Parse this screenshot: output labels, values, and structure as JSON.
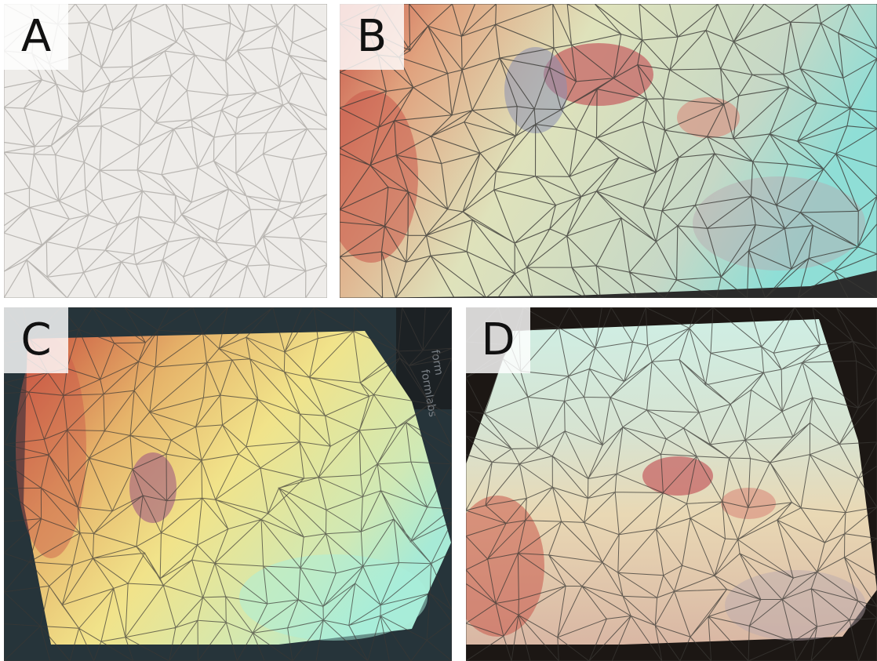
{
  "panels": [
    {
      "id": "A",
      "label": "A"
    },
    {
      "id": "B",
      "label": "B"
    },
    {
      "id": "C",
      "label": "C"
    },
    {
      "id": "D",
      "label": "D"
    }
  ],
  "photo_texts": {
    "c_box_text_1": "form",
    "c_box_text_2": "formlabs"
  },
  "colors": {
    "paper": "#f0eeeb",
    "red": "#c9584a",
    "orange": "#e49a6a",
    "yellow": "#f1e38a",
    "pale_yellow": "#efe9b9",
    "green": "#d6e6c0",
    "cyan": "#9fe6dc",
    "blue_purple": "#8b8fb3",
    "dark_bg": "#2c3a40",
    "crease_line": "#3a3834"
  }
}
